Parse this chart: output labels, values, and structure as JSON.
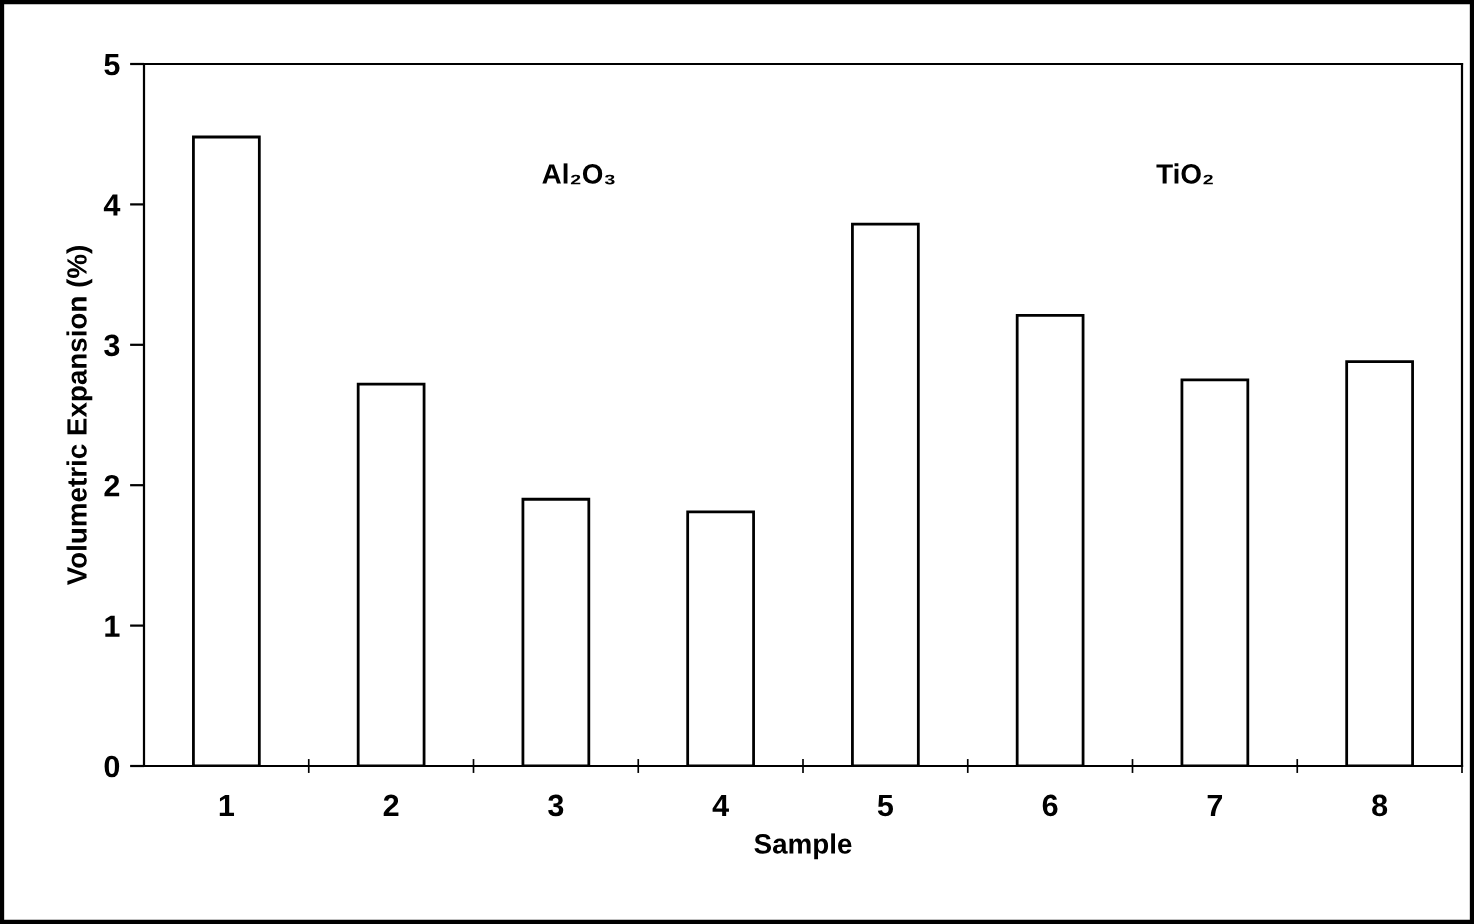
{
  "chart_data": {
    "type": "bar",
    "xlabel": "Sample",
    "ylabel": "Volumetric Expansion (%)",
    "categories": [
      "1",
      "2",
      "3",
      "4",
      "5",
      "6",
      "7",
      "8"
    ],
    "values": [
      4.48,
      2.72,
      1.9,
      1.81,
      3.86,
      3.21,
      2.75,
      2.88
    ],
    "color": "#ffffff",
    "annotations": [
      "Al₂O₃",
      "TiO₂"
    ],
    "ylim": [
      0,
      5
    ],
    "yticks": [
      0,
      1,
      2,
      3,
      4,
      5
    ],
    "grid": false
  }
}
